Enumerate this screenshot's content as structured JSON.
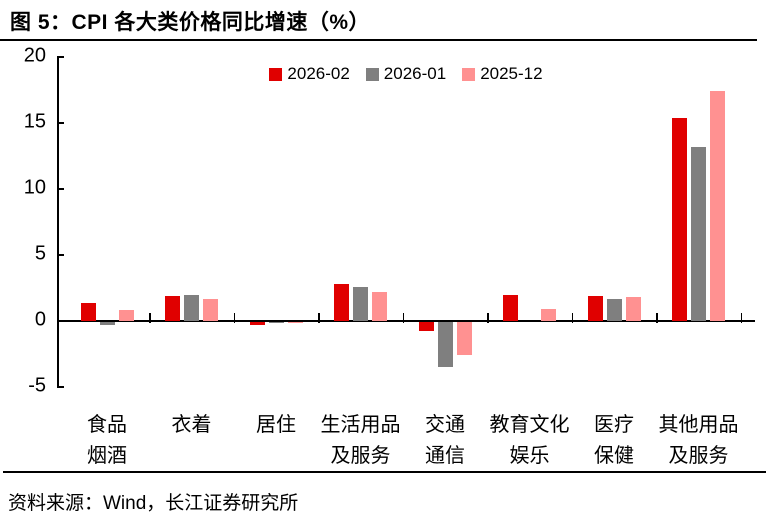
{
  "title": "图 5：CPI 各大类价格同比增速（%）",
  "source": "资料来源：Wind，长江证券研究所",
  "colors": {
    "accent_red": "#E00000",
    "gray": "#7F7F7F",
    "pink": "#FF9191",
    "axis": "#000000"
  },
  "chart_data": {
    "type": "bar",
    "title": "CPI 各大类价格同比增速（%）",
    "categories": [
      "食品烟酒",
      "衣着",
      "居住",
      "生活用品及服务",
      "交通通信",
      "教育文化娱乐",
      "医疗保健",
      "其他用品及服务"
    ],
    "category_label_lines": [
      [
        "食品",
        "烟酒"
      ],
      [
        "衣着"
      ],
      [
        "居住"
      ],
      [
        "生活用品",
        "及服务"
      ],
      [
        "交通",
        "通信"
      ],
      [
        "教育文化",
        "娱乐"
      ],
      [
        "医疗",
        "保健"
      ],
      [
        "其他用品",
        "及服务"
      ]
    ],
    "series": [
      {
        "name": "2026-02",
        "color": "#E00000",
        "values": [
          1.4,
          1.9,
          -0.2,
          2.8,
          -0.7,
          2.0,
          1.9,
          15.4
        ]
      },
      {
        "name": "2026-01",
        "color": "#7F7F7F",
        "values": [
          -0.2,
          2.0,
          -0.1,
          2.6,
          -3.4,
          0.0,
          1.7,
          13.2
        ]
      },
      {
        "name": "2025-12",
        "color": "#FF9191",
        "values": [
          0.8,
          1.7,
          -0.1,
          2.2,
          -2.5,
          0.9,
          1.8,
          17.4
        ]
      }
    ],
    "xlabel": "",
    "ylabel": "",
    "ylim": [
      -5,
      20
    ],
    "yticks": [
      20,
      15,
      10,
      5,
      0,
      -5
    ],
    "grid": false,
    "legend_position": "top-center"
  }
}
